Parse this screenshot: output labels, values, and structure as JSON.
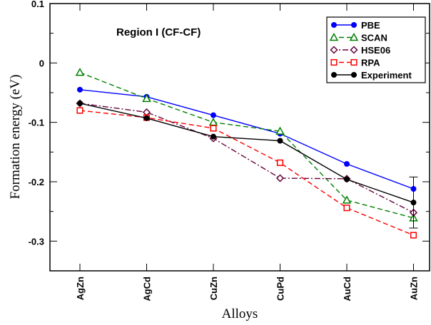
{
  "chart_data": {
    "type": "line",
    "title": "",
    "annotation": "Region I (CF-CF)",
    "xlabel": "Alloys",
    "ylabel": "Formation energy (eV)",
    "categories": [
      "AgZn",
      "AgCd",
      "CuZn",
      "CuPd",
      "AuCd",
      "AuZn"
    ],
    "ylim": [
      -0.35,
      0.1
    ],
    "yticks": [
      0.1,
      0,
      -0.1,
      -0.2,
      -0.3
    ],
    "ytick_labels": [
      "0.1",
      "0",
      "-0.1",
      "-0.2",
      "-0.3"
    ],
    "legend_position": "top-right",
    "grid": false,
    "series": [
      {
        "name": "PBE",
        "color": "#0000ff",
        "dash": "solid",
        "marker": "circle-filled",
        "values": [
          -0.045,
          -0.057,
          -0.088,
          -0.119,
          -0.17,
          -0.212
        ]
      },
      {
        "name": "SCAN",
        "color": "#008000",
        "dash": "dashed",
        "marker": "triangle-open",
        "values": [
          -0.016,
          -0.06,
          -0.1,
          -0.115,
          -0.231,
          -0.261
        ]
      },
      {
        "name": "HSE06",
        "color": "#66023c",
        "dash": "dashdot",
        "marker": "diamond-open",
        "values": [
          -0.068,
          -0.083,
          -0.127,
          -0.194,
          -0.195,
          -0.252
        ]
      },
      {
        "name": "RPA",
        "color": "#ff0000",
        "dash": "dashed",
        "marker": "square-open",
        "values": [
          -0.08,
          -0.092,
          -0.11,
          -0.168,
          -0.244,
          -0.29
        ]
      },
      {
        "name": "Experiment",
        "color": "#000000",
        "dash": "solid",
        "marker": "circle-filled",
        "values": [
          -0.068,
          -0.093,
          -0.124,
          -0.131,
          -0.196,
          -0.235
        ],
        "error": [
          0.0,
          0.0,
          0.0,
          0.0,
          0.0,
          0.043
        ]
      }
    ]
  }
}
